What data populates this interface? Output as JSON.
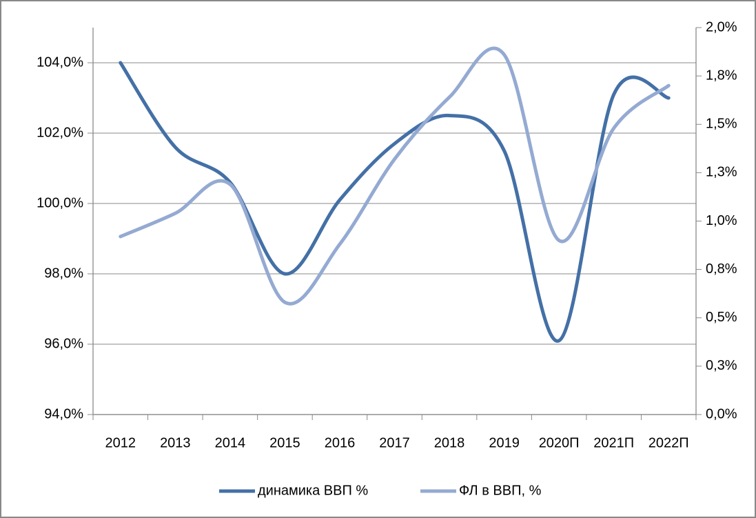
{
  "chart_data": {
    "type": "line",
    "categories": [
      "2012",
      "2013",
      "2014",
      "2015",
      "2016",
      "2017",
      "2018",
      "2019",
      "2020П",
      "2021П",
      "2022П"
    ],
    "series": [
      {
        "name": "динамика ВВП %",
        "color": "#4470a6",
        "values": [
          104.0,
          101.6,
          100.6,
          98.0,
          100.1,
          101.7,
          102.5,
          101.5,
          96.1,
          103.1,
          103.0
        ]
      },
      {
        "name": "ФЛ в ВВП, %",
        "color": "#94aad2",
        "axis": "y2",
        "values": [
          0.92,
          1.04,
          1.19,
          0.58,
          0.88,
          1.32,
          1.64,
          1.86,
          0.9,
          1.48,
          1.7
        ]
      }
    ],
    "ylim": [
      94,
      105
    ],
    "yticks": [
      {
        "value": 94,
        "label": "94,0%"
      },
      {
        "value": 96,
        "label": "96,0%"
      },
      {
        "value": 98,
        "label": "98,0%"
      },
      {
        "value": 100,
        "label": "100,0%"
      },
      {
        "value": 102,
        "label": "102,0%"
      },
      {
        "value": 104,
        "label": "104,0%"
      }
    ],
    "y2lim": [
      0,
      2
    ],
    "y2ticks": [
      {
        "value": 0,
        "label": "0,0%"
      },
      {
        "value": 0.25,
        "label": "0,3%"
      },
      {
        "value": 0.5,
        "label": "0,5%"
      },
      {
        "value": 0.75,
        "label": "0,8%"
      },
      {
        "value": 1.0,
        "label": "1,0%"
      },
      {
        "value": 1.25,
        "label": "1,3%"
      },
      {
        "value": 1.5,
        "label": "1,5%"
      },
      {
        "value": 1.75,
        "label": "1,8%"
      },
      {
        "value": 2.0,
        "label": "2,0%"
      }
    ],
    "grid": true,
    "legend": "bottom"
  }
}
